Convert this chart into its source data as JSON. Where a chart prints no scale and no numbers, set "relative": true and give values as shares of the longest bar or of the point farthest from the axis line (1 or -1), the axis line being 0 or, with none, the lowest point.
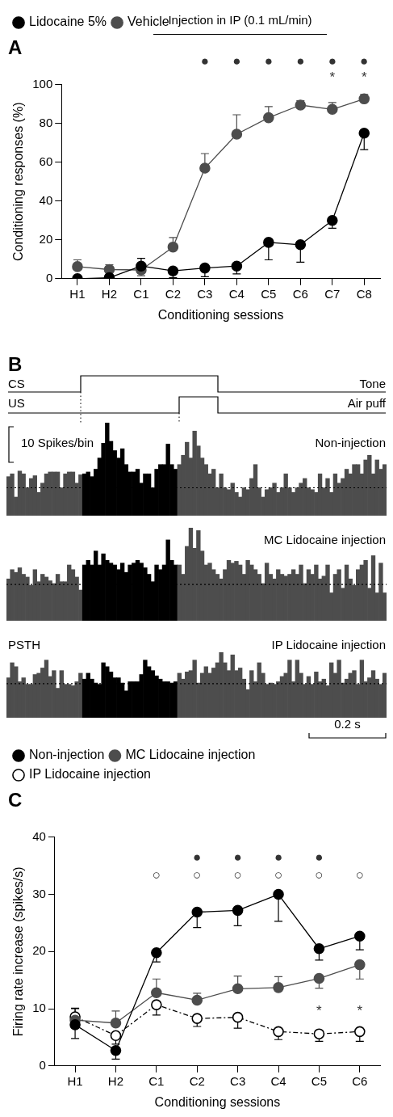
{
  "chart_data": [
    {
      "type": "line",
      "title": "A",
      "xlabel": "Conditioning sessions",
      "ylabel": "Conditioning responses (%)",
      "categories": [
        "H1",
        "H2",
        "C1",
        "C2",
        "C3",
        "C4",
        "C5",
        "C6",
        "C7",
        "C8"
      ],
      "series": [
        {
          "name": "Lidocaine 5%",
          "color": "#000000",
          "values": [
            0,
            0.5,
            6.5,
            4,
            5.5,
            6.5,
            18.7,
            17.5,
            30,
            75
          ],
          "errors": [
            null,
            null,
            [
              6.5,
              10.5
            ],
            [
              0.5,
              4
            ],
            [
              1,
              5.5
            ],
            [
              2.5,
              6.5
            ],
            [
              9.7,
              18.7
            ],
            [
              8.5,
              17.5
            ],
            [
              26,
              30
            ],
            [
              66.5,
              75
            ]
          ]
        },
        {
          "name": "Vehicle",
          "color": "#4d4d4d",
          "values": [
            6.2,
            4.7,
            4.5,
            16.3,
            57,
            74.5,
            83,
            89.5,
            87.3,
            92.7
          ],
          "errors": [
            [
              6.2,
              9.7
            ],
            [
              4.7,
              7.2
            ],
            [
              1.5,
              4.5
            ],
            [
              16.3,
              21.2
            ],
            [
              57,
              64.5
            ],
            [
              74.5,
              84.5
            ],
            [
              83,
              88.7
            ],
            [
              89.5,
              91.8
            ],
            [
              87.3,
              90.8
            ],
            [
              92.7,
              95
            ]
          ]
        }
      ],
      "ylim": [
        0,
        100
      ],
      "yticks": [
        0,
        20,
        40,
        60,
        80,
        100
      ],
      "marker": "circle",
      "legend": "top left",
      "annotations": [
        "Injection in IP (0.1 mL/min)",
        "●",
        "●",
        "●",
        "●",
        "●",
        "●",
        "*",
        "*"
      ]
    },
    {
      "type": "bar",
      "title": "B",
      "relative": true,
      "categories": [
        null,
        null,
        null,
        null,
        null,
        null,
        null,
        null,
        null,
        null,
        null,
        null,
        null,
        null,
        null,
        null,
        null,
        null,
        null,
        null,
        null,
        null,
        null,
        null,
        null,
        null,
        null,
        null,
        null,
        null,
        null,
        null,
        null,
        null,
        null,
        null,
        null,
        null,
        null,
        null,
        null,
        null,
        null,
        null,
        null,
        null,
        null,
        null,
        null,
        null,
        null,
        null,
        null,
        null,
        null,
        null,
        null,
        null,
        null,
        null,
        null,
        null,
        null,
        null,
        null,
        null,
        null,
        null,
        null,
        null,
        null,
        null,
        null,
        null,
        null,
        null,
        null,
        null,
        null,
        null,
        null,
        null,
        null,
        null,
        null,
        null,
        null,
        null,
        null,
        null,
        null,
        null,
        null,
        null,
        null,
        null,
        null,
        null,
        null,
        null
      ],
      "values": [
        0.42,
        0.45,
        0.2,
        0.48,
        0.45,
        0.3,
        0.4,
        0.43,
        0.25,
        0.35,
        0.45,
        0.47,
        0.47,
        0.47,
        0.3,
        0.45,
        0.47,
        0.47,
        0.35,
        0.44,
        0.45,
        0.47,
        0.42,
        0.5,
        0.62,
        0.78,
        1.0,
        0.8,
        0.7,
        0.62,
        0.72,
        0.55,
        0.47,
        0.47,
        0.5,
        0.35,
        0.45,
        0.45,
        0.3,
        0.5,
        0.55,
        0.55,
        0.77,
        0.55,
        0.5,
        0.55,
        0.65,
        0.79,
        0.62,
        0.91,
        0.75,
        0.62,
        0.55,
        0.45,
        0.5,
        0.3,
        0.45,
        0.3,
        0.28,
        0.35,
        0.25,
        0.2,
        0.3,
        0.28,
        0.4,
        0.55,
        0.3,
        0.2,
        0.28,
        0.3,
        0.35,
        0.25,
        0.3,
        0.45,
        0.3,
        0.25,
        0.3,
        0.35,
        0.4,
        0.3,
        0.28,
        0.25,
        0.45,
        0.3,
        0.4,
        0.25,
        0.45,
        0.35,
        0.4,
        0.5,
        0.45,
        0.55,
        0.55,
        0.45,
        0.6,
        0.65,
        0.45,
        0.6,
        0.5,
        0.55
      ],
      "colors": [
        "#4d4d4d",
        "#4d4d4d",
        "#4d4d4d",
        "#4d4d4d",
        "#4d4d4d",
        "#4d4d4d",
        "#4d4d4d",
        "#4d4d4d",
        "#4d4d4d",
        "#4d4d4d",
        "#4d4d4d",
        "#4d4d4d",
        "#4d4d4d",
        "#4d4d4d",
        "#4d4d4d",
        "#4d4d4d",
        "#4d4d4d",
        "#4d4d4d",
        "#4d4d4d",
        "#4d4d4d",
        "#000000",
        "#000000",
        "#000000",
        "#000000",
        "#000000",
        "#000000",
        "#000000",
        "#000000",
        "#000000",
        "#000000",
        "#000000",
        "#000000",
        "#000000",
        "#000000",
        "#000000",
        "#000000",
        "#000000",
        "#000000",
        "#000000",
        "#000000",
        "#000000",
        "#000000",
        "#000000",
        "#000000",
        "#000000",
        "#4d4d4d",
        "#4d4d4d",
        "#4d4d4d",
        "#4d4d4d",
        "#4d4d4d",
        "#4d4d4d",
        "#4d4d4d",
        "#4d4d4d",
        "#4d4d4d",
        "#4d4d4d",
        "#4d4d4d",
        "#4d4d4d",
        "#4d4d4d",
        "#4d4d4d",
        "#4d4d4d",
        "#4d4d4d",
        "#4d4d4d",
        "#4d4d4d",
        "#4d4d4d",
        "#4d4d4d",
        "#4d4d4d",
        "#4d4d4d",
        "#4d4d4d",
        "#4d4d4d",
        "#4d4d4d",
        "#4d4d4d",
        "#4d4d4d",
        "#4d4d4d",
        "#4d4d4d",
        "#4d4d4d",
        "#4d4d4d",
        "#4d4d4d",
        "#4d4d4d",
        "#4d4d4d",
        "#4d4d4d",
        "#4d4d4d",
        "#4d4d4d",
        "#4d4d4d",
        "#4d4d4d",
        "#4d4d4d",
        "#4d4d4d",
        "#4d4d4d",
        "#4d4d4d",
        "#4d4d4d",
        "#4d4d4d",
        "#4d4d4d",
        "#4d4d4d",
        "#4d4d4d",
        "#4d4d4d",
        "#4d4d4d",
        "#4d4d4d",
        "#4d4d4d",
        "#4d4d4d",
        "#4d4d4d",
        "#4d4d4d"
      ],
      "ref_lines": [
        {
          "axis": "y",
          "value": 0.3,
          "line_style": "dotted"
        }
      ],
      "annotations": [
        "CS",
        "Tone",
        "US",
        "Air puff",
        "10 Spikes/bin",
        "Non-injection"
      ]
    },
    {
      "type": "bar",
      "relative": true,
      "categories": [
        null,
        null,
        null,
        null,
        null,
        null,
        null,
        null,
        null,
        null,
        null,
        null,
        null,
        null,
        null,
        null,
        null,
        null,
        null,
        null,
        null,
        null,
        null,
        null,
        null,
        null,
        null,
        null,
        null,
        null,
        null,
        null,
        null,
        null,
        null,
        null,
        null,
        null,
        null,
        null,
        null,
        null,
        null,
        null,
        null,
        null,
        null,
        null,
        null,
        null,
        null,
        null,
        null,
        null,
        null,
        null,
        null,
        null,
        null,
        null,
        null,
        null,
        null,
        null,
        null,
        null,
        null,
        null,
        null,
        null,
        null,
        null,
        null,
        null,
        null,
        null,
        null,
        null,
        null,
        null,
        null,
        null,
        null,
        null,
        null,
        null,
        null,
        null,
        null,
        null,
        null,
        null,
        null,
        null,
        null,
        null,
        null,
        null,
        null,
        null
      ],
      "values": [
        0.45,
        0.55,
        0.52,
        0.57,
        0.5,
        0.47,
        0.38,
        0.55,
        0.42,
        0.5,
        0.47,
        0.43,
        0.4,
        0.5,
        0.42,
        0.42,
        0.6,
        0.55,
        0.47,
        0.33,
        0.6,
        0.65,
        0.6,
        0.75,
        0.6,
        0.72,
        0.65,
        0.62,
        0.6,
        0.55,
        0.62,
        0.52,
        0.6,
        0.62,
        0.65,
        0.62,
        0.57,
        0.5,
        0.42,
        0.6,
        0.55,
        0.6,
        0.87,
        0.65,
        0.6,
        0.6,
        0.5,
        0.8,
        1.0,
        0.78,
        0.97,
        0.75,
        0.6,
        0.62,
        0.55,
        0.5,
        0.45,
        0.55,
        0.65,
        0.62,
        0.64,
        0.6,
        0.5,
        0.65,
        0.6,
        0.55,
        0.5,
        0.4,
        0.62,
        0.5,
        0.45,
        0.55,
        0.5,
        0.48,
        0.5,
        0.55,
        0.5,
        0.6,
        0.4,
        0.55,
        0.5,
        0.6,
        0.45,
        0.48,
        0.6,
        0.3,
        0.5,
        0.55,
        0.35,
        0.6,
        0.45,
        0.38,
        0.55,
        0.6,
        0.65,
        0.35,
        0.7,
        0.3,
        0.62,
        0.3
      ],
      "colors": [
        "#4d4d4d",
        "#4d4d4d",
        "#4d4d4d",
        "#4d4d4d",
        "#4d4d4d",
        "#4d4d4d",
        "#4d4d4d",
        "#4d4d4d",
        "#4d4d4d",
        "#4d4d4d",
        "#4d4d4d",
        "#4d4d4d",
        "#4d4d4d",
        "#4d4d4d",
        "#4d4d4d",
        "#4d4d4d",
        "#4d4d4d",
        "#4d4d4d",
        "#4d4d4d",
        "#4d4d4d",
        "#000000",
        "#000000",
        "#000000",
        "#000000",
        "#000000",
        "#000000",
        "#000000",
        "#000000",
        "#000000",
        "#000000",
        "#000000",
        "#000000",
        "#000000",
        "#000000",
        "#000000",
        "#000000",
        "#000000",
        "#000000",
        "#000000",
        "#000000",
        "#000000",
        "#000000",
        "#000000",
        "#000000",
        "#000000",
        "#4d4d4d",
        "#4d4d4d",
        "#4d4d4d",
        "#4d4d4d",
        "#4d4d4d",
        "#4d4d4d",
        "#4d4d4d",
        "#4d4d4d",
        "#4d4d4d",
        "#4d4d4d",
        "#4d4d4d",
        "#4d4d4d",
        "#4d4d4d",
        "#4d4d4d",
        "#4d4d4d",
        "#4d4d4d",
        "#4d4d4d",
        "#4d4d4d",
        "#4d4d4d",
        "#4d4d4d",
        "#4d4d4d",
        "#4d4d4d",
        "#4d4d4d",
        "#4d4d4d",
        "#4d4d4d",
        "#4d4d4d",
        "#4d4d4d",
        "#4d4d4d",
        "#4d4d4d",
        "#4d4d4d",
        "#4d4d4d",
        "#4d4d4d",
        "#4d4d4d",
        "#4d4d4d",
        "#4d4d4d",
        "#4d4d4d",
        "#4d4d4d",
        "#4d4d4d",
        "#4d4d4d",
        "#4d4d4d",
        "#4d4d4d",
        "#4d4d4d",
        "#4d4d4d",
        "#4d4d4d",
        "#4d4d4d",
        "#4d4d4d",
        "#4d4d4d",
        "#4d4d4d",
        "#4d4d4d",
        "#4d4d4d",
        "#4d4d4d",
        "#4d4d4d",
        "#4d4d4d",
        "#4d4d4d",
        "#4d4d4d"
      ],
      "ref_lines": [
        {
          "axis": "y",
          "value": 0.39,
          "line_style": "dotted"
        }
      ],
      "annotations": [
        "MC Lidocaine injection"
      ]
    },
    {
      "type": "bar",
      "relative": true,
      "categories": [
        null,
        null,
        null,
        null,
        null,
        null,
        null,
        null,
        null,
        null,
        null,
        null,
        null,
        null,
        null,
        null,
        null,
        null,
        null,
        null,
        null,
        null,
        null,
        null,
        null,
        null,
        null,
        null,
        null,
        null,
        null,
        null,
        null,
        null,
        null,
        null,
        null,
        null,
        null,
        null,
        null,
        null,
        null,
        null,
        null,
        null,
        null,
        null,
        null,
        null,
        null,
        null,
        null,
        null,
        null,
        null,
        null,
        null,
        null,
        null,
        null,
        null,
        null,
        null,
        null,
        null,
        null,
        null,
        null,
        null,
        null,
        null,
        null,
        null,
        null,
        null,
        null,
        null,
        null,
        null,
        null,
        null,
        null,
        null,
        null,
        null,
        null,
        null,
        null,
        null,
        null,
        null,
        null,
        null,
        null,
        null,
        null,
        null,
        null,
        null
      ],
      "values": [
        0.61,
        0.84,
        0.78,
        0.55,
        0.61,
        0.51,
        0.51,
        0.66,
        0.68,
        0.76,
        0.88,
        0.63,
        0.72,
        0.45,
        0.72,
        0.51,
        0.51,
        0.49,
        0.55,
        0.68,
        0.59,
        0.68,
        0.59,
        0.53,
        0.51,
        0.84,
        0.78,
        0.7,
        0.61,
        0.61,
        0.53,
        0.41,
        0.55,
        0.55,
        0.55,
        0.66,
        0.88,
        0.78,
        0.72,
        0.64,
        0.59,
        0.55,
        0.55,
        0.53,
        0.55,
        0.68,
        0.59,
        0.7,
        0.72,
        0.88,
        0.53,
        0.68,
        0.78,
        0.68,
        0.76,
        0.84,
        1.0,
        0.84,
        0.72,
        0.96,
        0.72,
        0.76,
        0.59,
        0.43,
        0.72,
        0.55,
        0.84,
        0.68,
        0.51,
        0.53,
        0.51,
        0.55,
        0.63,
        0.68,
        0.88,
        0.55,
        0.88,
        0.68,
        0.51,
        0.63,
        0.51,
        0.7,
        0.55,
        0.59,
        0.49,
        0.84,
        0.68,
        0.88,
        0.53,
        0.59,
        0.68,
        0.72,
        0.51,
        0.88,
        0.55,
        0.61,
        0.72,
        0.59,
        0.51,
        0.68
      ],
      "colors": [
        "#4d4d4d",
        "#4d4d4d",
        "#4d4d4d",
        "#4d4d4d",
        "#4d4d4d",
        "#4d4d4d",
        "#4d4d4d",
        "#4d4d4d",
        "#4d4d4d",
        "#4d4d4d",
        "#4d4d4d",
        "#4d4d4d",
        "#4d4d4d",
        "#4d4d4d",
        "#4d4d4d",
        "#4d4d4d",
        "#4d4d4d",
        "#4d4d4d",
        "#4d4d4d",
        "#4d4d4d",
        "#000000",
        "#000000",
        "#000000",
        "#000000",
        "#000000",
        "#000000",
        "#000000",
        "#000000",
        "#000000",
        "#000000",
        "#000000",
        "#000000",
        "#000000",
        "#000000",
        "#000000",
        "#000000",
        "#000000",
        "#000000",
        "#000000",
        "#000000",
        "#000000",
        "#000000",
        "#000000",
        "#000000",
        "#000000",
        "#4d4d4d",
        "#4d4d4d",
        "#4d4d4d",
        "#4d4d4d",
        "#4d4d4d",
        "#4d4d4d",
        "#4d4d4d",
        "#4d4d4d",
        "#4d4d4d",
        "#4d4d4d",
        "#4d4d4d",
        "#4d4d4d",
        "#4d4d4d",
        "#4d4d4d",
        "#4d4d4d",
        "#4d4d4d",
        "#4d4d4d",
        "#4d4d4d",
        "#4d4d4d",
        "#4d4d4d",
        "#4d4d4d",
        "#4d4d4d",
        "#4d4d4d",
        "#4d4d4d",
        "#4d4d4d",
        "#4d4d4d",
        "#4d4d4d",
        "#4d4d4d",
        "#4d4d4d",
        "#4d4d4d",
        "#4d4d4d",
        "#4d4d4d",
        "#4d4d4d",
        "#4d4d4d",
        "#4d4d4d",
        "#4d4d4d",
        "#4d4d4d",
        "#4d4d4d",
        "#4d4d4d",
        "#4d4d4d",
        "#4d4d4d",
        "#4d4d4d",
        "#4d4d4d",
        "#4d4d4d",
        "#4d4d4d",
        "#4d4d4d",
        "#4d4d4d",
        "#4d4d4d",
        "#4d4d4d",
        "#4d4d4d",
        "#4d4d4d",
        "#4d4d4d",
        "#4d4d4d",
        "#4d4d4d",
        "#4d4d4d"
      ],
      "ref_lines": [
        {
          "axis": "y",
          "value": 0.52,
          "line_style": "dotted"
        }
      ],
      "annotations": [
        "PSTH",
        "IP Lidocaine injection",
        "0.2 s"
      ]
    },
    {
      "type": "line",
      "title": "C",
      "xlabel": "Conditioning sessions",
      "ylabel": "Firing rate increase (spikes/s)",
      "categories": [
        "H1",
        "H2",
        "C1",
        "C2",
        "C3",
        "C4",
        "C5",
        "C6"
      ],
      "series": [
        {
          "name": "Non-injection",
          "color": "#000000",
          "values": [
            7.2,
            2.7,
            19.8,
            26.9,
            27.2,
            30,
            20.5,
            22.7
          ],
          "errors": [
            [
              4.8,
              7.2
            ],
            [
              1.2,
              2.7
            ],
            [
              18.2,
              19.8
            ],
            [
              24.2,
              26.9
            ],
            [
              24.5,
              27.2
            ],
            [
              25.3,
              30
            ],
            [
              18.5,
              20.5
            ],
            [
              20.3,
              22.7
            ]
          ]
        },
        {
          "name": "MC Lidocaine injection",
          "color": "#4d4d4d",
          "values": [
            8,
            7.5,
            12.8,
            11.5,
            13.5,
            13.7,
            15.3,
            17.7
          ],
          "errors": [
            [
              8,
              10
            ],
            [
              7.5,
              9.6
            ],
            [
              12.8,
              15.2
            ],
            [
              11.5,
              12.7
            ],
            [
              13.5,
              15.7
            ],
            [
              13.7,
              15.6
            ],
            [
              13.6,
              15.3
            ],
            [
              15.2,
              17.7
            ]
          ]
        },
        {
          "name": "IP Lidocaine injection",
          "color": "#000000",
          "line_style": "dashed",
          "values": [
            8.6,
            5.3,
            10.7,
            8.3,
            8.5,
            6,
            5.6,
            6
          ],
          "errors": [
            [
              8.6,
              10.1
            ],
            [
              3.8,
              5.3
            ],
            [
              8.9,
              10.7
            ],
            [
              6.9,
              8.3
            ],
            [
              6.6,
              8.5
            ],
            [
              4.6,
              6
            ],
            [
              4.3,
              5.6
            ],
            [
              4.3,
              6
            ]
          ]
        }
      ],
      "ylim": [
        0,
        40
      ],
      "yticks": [
        0,
        10,
        20,
        30,
        40
      ],
      "marker": "circle",
      "legend": "top",
      "annotations": [
        "●",
        "●",
        "●",
        "●",
        "○",
        "○",
        "○",
        "○",
        "○",
        "○",
        "*",
        "*"
      ]
    }
  ]
}
